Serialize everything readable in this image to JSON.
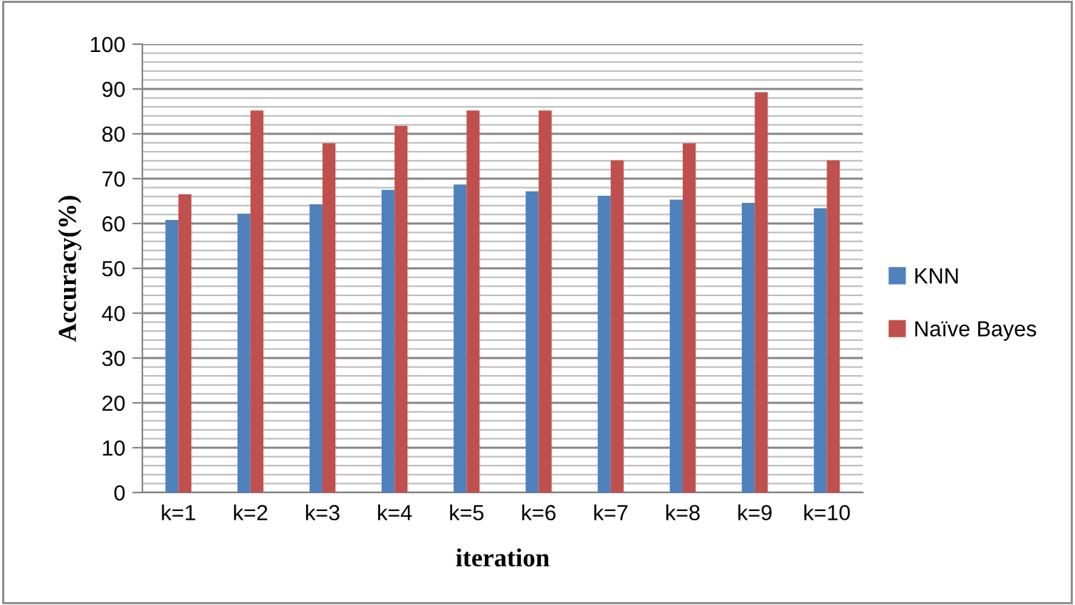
{
  "chart_data": {
    "type": "bar",
    "xlabel": "iteration",
    "ylabel": "Accuracy(%)",
    "categories": [
      "k=1",
      "k=2",
      "k=3",
      "k=4",
      "k=5",
      "k=6",
      "k=7",
      "k=8",
      "k=9",
      "k=10"
    ],
    "series": [
      {
        "name": "KNN",
        "color": "#4f81bd",
        "values": [
          60.8,
          62.2,
          64.3,
          67.5,
          68.7,
          67.2,
          66.2,
          65.3,
          64.6,
          63.4
        ]
      },
      {
        "name": "Naïve Bayes",
        "color": "#c0504d",
        "values": [
          66.5,
          85.2,
          77.9,
          81.8,
          85.2,
          85.2,
          74.1,
          77.9,
          89.3,
          74.1
        ]
      }
    ],
    "ylim": [
      0,
      100
    ],
    "yticks": [
      0,
      10,
      20,
      30,
      40,
      50,
      60,
      70,
      80,
      90,
      100
    ],
    "grid": "y",
    "legend": "right"
  }
}
